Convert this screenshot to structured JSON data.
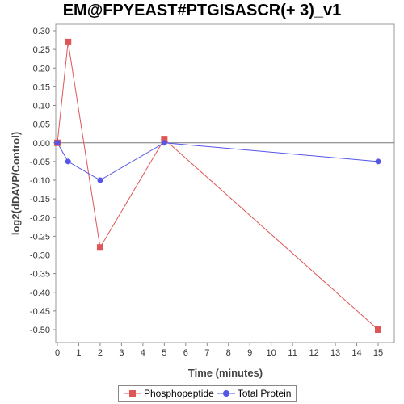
{
  "chart_data": {
    "type": "line",
    "title": "EM@FPYEAST#PTGISASCR(+ 3)_v1",
    "xlabel": "Time (minutes)",
    "ylabel": "log2(dDAVP/Control)",
    "xlim": [
      0,
      16
    ],
    "ylim": [
      -0.54,
      0.31
    ],
    "x_ticks": [
      0,
      1,
      2,
      3,
      4,
      5,
      6,
      7,
      8,
      9,
      10,
      11,
      12,
      13,
      14,
      15
    ],
    "y_ticks": [
      0.3,
      0.25,
      0.2,
      0.15,
      0.1,
      0.05,
      0.0,
      -0.05,
      -0.1,
      -0.15,
      -0.2,
      -0.25,
      -0.3,
      -0.35,
      -0.4,
      -0.45,
      -0.5
    ],
    "y_tick_labels": [
      "0.30",
      "0.25",
      "0.20",
      "0.15",
      "0.10",
      "0.05",
      "0.00",
      "-0.05",
      "-0.10",
      "-0.15",
      "-0.20",
      "-0.25",
      "-0.30",
      "-0.35",
      "-0.40",
      "-0.45",
      "-0.50"
    ],
    "grid": false,
    "legend_position": "bottom",
    "series": [
      {
        "name": "Phosphopeptide",
        "color": "#e05555",
        "marker": "square",
        "points": [
          [
            0,
            0.0
          ],
          [
            0.5,
            0.27
          ],
          [
            2,
            -0.28
          ],
          [
            5,
            0.01
          ],
          [
            15,
            -0.5
          ]
        ]
      },
      {
        "name": "Total Protein",
        "color": "#5555e8",
        "marker": "circle",
        "points": [
          [
            0,
            0.0
          ],
          [
            0.5,
            -0.05
          ],
          [
            2,
            -0.1
          ],
          [
            5,
            0.0
          ],
          [
            15,
            -0.05
          ]
        ]
      }
    ]
  }
}
